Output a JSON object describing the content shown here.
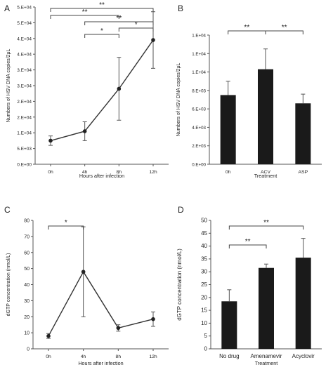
{
  "chart_data": [
    {
      "panel": "A",
      "type": "line",
      "categories": [
        "0h",
        "4h",
        "8h",
        "12h"
      ],
      "values": [
        7500,
        10500,
        24000,
        39500
      ],
      "errors": [
        1500,
        3000,
        10000,
        9000
      ],
      "xlabel": "Hours after infection",
      "ylabel": "Numbers of HSV DNA copies/2μL",
      "ylim": [
        0,
        50000
      ],
      "yticks": [
        "0.E+00",
        "5.E+03",
        "1.E+04",
        "2.E+04",
        "2.E+04",
        "3.E+04",
        "3.E+04",
        "4.E+04",
        "4.E+04",
        "5.E+04",
        "5.E+04"
      ],
      "yticks_values": [
        0,
        5000,
        10000,
        15000,
        20000,
        25000,
        30000,
        35000,
        40000,
        45000,
        50000
      ],
      "significance": [
        {
          "from": 0,
          "to": 3,
          "label": "**",
          "level": 0
        },
        {
          "from": 0,
          "to": 2,
          "label": "**",
          "level": 1
        },
        {
          "from": 1,
          "to": 3,
          "label": "**",
          "level": 2
        },
        {
          "from": 2,
          "to": 3,
          "label": "*",
          "level": 3
        },
        {
          "from": 1,
          "to": 2,
          "label": "*",
          "level": 4
        }
      ]
    },
    {
      "panel": "B",
      "type": "bar",
      "categories": [
        "0h",
        "ACV",
        "ASP"
      ],
      "values": [
        7500,
        10300,
        6600
      ],
      "errors": [
        1500,
        2200,
        1000
      ],
      "xlabel": "Treatment",
      "ylabel": "Numbers of HSV DNA copies/2μL",
      "ylim": [
        0,
        14000
      ],
      "yticks": [
        "0.E+00",
        "2.E+03",
        "4.E+03",
        "6.E+03",
        "8.E+03",
        "1.E+04",
        "1.E+04",
        "1.E+04"
      ],
      "yticks_values": [
        0,
        2000,
        4000,
        6000,
        8000,
        10000,
        12000,
        14000
      ],
      "significance": [
        {
          "from": 0,
          "to": 1,
          "label": "**",
          "level": 0
        },
        {
          "from": 1,
          "to": 2,
          "label": "**",
          "level": 0
        }
      ]
    },
    {
      "panel": "C",
      "type": "line",
      "categories": [
        "0h",
        "4h",
        "8h",
        "12h"
      ],
      "values": [
        8,
        48,
        13,
        18.5
      ],
      "errors": [
        1.5,
        28,
        2,
        4.5
      ],
      "xlabel": "Hours after infection",
      "ylabel": "dGTP concentration (nmol/L)",
      "ylim": [
        0,
        80
      ],
      "yticks": [
        "0",
        "10",
        "20",
        "30",
        "40",
        "50",
        "60",
        "70",
        "80"
      ],
      "yticks_values": [
        0,
        10,
        20,
        30,
        40,
        50,
        60,
        70,
        80
      ],
      "significance": [
        {
          "from": 0,
          "to": 1,
          "label": "*",
          "level": 0
        }
      ]
    },
    {
      "panel": "D",
      "type": "bar",
      "categories": [
        "No drug",
        "Amenamevir",
        "Acyclovir"
      ],
      "values": [
        18.5,
        31.5,
        35.5
      ],
      "errors": [
        4.5,
        1.5,
        7.5
      ],
      "xlabel": "Treatment",
      "ylabel": "dGTP concentration (nmol/L)",
      "ylim": [
        0,
        50
      ],
      "yticks": [
        "0",
        "5",
        "10",
        "15",
        "20",
        "25",
        "30",
        "35",
        "40",
        "45",
        "50"
      ],
      "yticks_values": [
        0,
        5,
        10,
        15,
        20,
        25,
        30,
        35,
        40,
        45,
        50
      ],
      "significance": [
        {
          "from": 0,
          "to": 2,
          "label": "**",
          "level": 0
        },
        {
          "from": 0,
          "to": 1,
          "label": "**",
          "level": 1
        }
      ]
    }
  ],
  "colors": {
    "line": "#333333",
    "marker": "#222222",
    "bar": "#1a1a1a",
    "axis": "#555555"
  }
}
